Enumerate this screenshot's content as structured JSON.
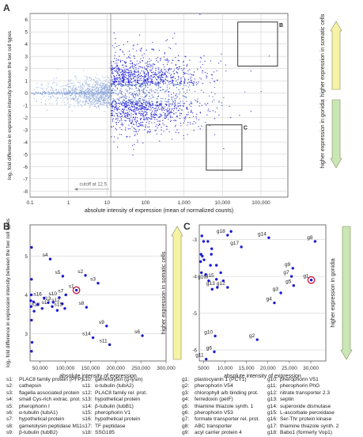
{
  "colors": {
    "point": "#1a1ad6",
    "point_light": "#8fa8d8",
    "point_mid": "#3a55c8",
    "grid": "#c9c9c9",
    "axis": "#555555",
    "highlight": "#cc1f4a",
    "arrow_yellow": "#f7f3a6",
    "arrow_green": "#c9e6b5"
  },
  "panels": {
    "a": "A",
    "b": "B",
    "c": "C"
  },
  "chart_data": [
    {
      "panel": "A",
      "type": "scatter",
      "xlabel": "absolute intensity of expression (mean of normalized counts)",
      "ylabel": "log₂ fold difference in expression intensity between the two cell types",
      "x_scale": "log",
      "xlim": [
        0.1,
        500000
      ],
      "ylim": [
        -8.5,
        6.5
      ],
      "x_ticks": [
        "0.1",
        "1",
        "10",
        "100",
        "1,000",
        "10,000",
        "100,000"
      ],
      "y_ticks": [
        "-8",
        "-7",
        "-6",
        "-5",
        "-4",
        "-3",
        "-2",
        "-1",
        "0",
        "1",
        "2",
        "3",
        "4",
        "5",
        "6"
      ],
      "annotation": "cutoff at 12.5",
      "cutoff_x": 12.5,
      "boxes": [
        {
          "label": "B",
          "x": [
            25000,
            270000
          ],
          "y": [
            2.2,
            5.8
          ]
        },
        {
          "label": "C",
          "x": [
            3800,
            32000
          ],
          "y": [
            -6.3,
            -2.6
          ]
        }
      ],
      "arrows": [
        {
          "label": "higher expression in somatic cells",
          "direction": "up"
        },
        {
          "label": "higher expression in gonidia",
          "direction": "down"
        }
      ],
      "grid": true
    },
    {
      "panel": "B",
      "type": "scatter",
      "xlabel": "absolute intensity of expression",
      "ylabel": "log₂ fold difference in expression intensity between the two cell types",
      "xlim": [
        30000,
        300000
      ],
      "ylim": [
        2.3,
        5.8
      ],
      "x_ticks": [
        "50,000",
        "100,000",
        "150,000",
        "200,000",
        "250,000",
        "300,000"
      ],
      "y_ticks": [
        "3",
        "4",
        "5"
      ],
      "arrow": "higher expression in somatic cells",
      "highlight": "s1",
      "points": [
        {
          "label": "s1",
          "x": 122000,
          "y": 4.12
        },
        {
          "label": "s2",
          "x": 140000,
          "y": 4.5
        },
        {
          "label": "s3",
          "x": 165000,
          "y": 4.3
        },
        {
          "label": "s4",
          "x": 70000,
          "y": 4.92
        },
        {
          "label": "s5",
          "x": 95000,
          "y": 4.48
        },
        {
          "label": "s6",
          "x": 253000,
          "y": 2.95
        },
        {
          "label": "s7",
          "x": 101000,
          "y": 4.0
        },
        {
          "label": "s8",
          "x": 142000,
          "y": 3.68
        },
        {
          "label": "s9",
          "x": 182000,
          "y": 3.2
        },
        {
          "label": "s10",
          "x": 88000,
          "y": 3.93
        },
        {
          "label": "s11",
          "x": 188000,
          "y": 2.72
        },
        {
          "label": "s12",
          "x": 94000,
          "y": 3.77
        },
        {
          "label": "s13",
          "x": 76000,
          "y": 3.81
        },
        {
          "label": "s14",
          "x": 155000,
          "y": 2.9
        },
        {
          "label": "s15",
          "x": 99000,
          "y": 3.65
        },
        {
          "label": "s16",
          "x": 58000,
          "y": 3.92
        },
        {
          "label": "s17",
          "x": 74000,
          "y": 3.7
        },
        {
          "label": "s18",
          "x": 54000,
          "y": 3.65
        },
        {
          "x": 33000,
          "y": 5.22
        },
        {
          "x": 33000,
          "y": 4.4
        },
        {
          "x": 32500,
          "y": 4.0
        },
        {
          "x": 31500,
          "y": 3.85
        },
        {
          "x": 32000,
          "y": 3.7
        },
        {
          "x": 38000,
          "y": 3.58
        },
        {
          "x": 37000,
          "y": 3.82
        },
        {
          "x": 45000,
          "y": 3.75
        },
        {
          "x": 33000,
          "y": 3.35
        },
        {
          "x": 34000,
          "y": 2.78
        },
        {
          "x": 33000,
          "y": 2.55
        },
        {
          "x": 84000,
          "y": 3.6
        },
        {
          "x": 66000,
          "y": 3.8
        }
      ]
    },
    {
      "panel": "C",
      "type": "scatter",
      "xlabel": "absolute intensity of expression",
      "ylabel": "",
      "xlim": [
        4000,
        33500
      ],
      "ylim": [
        -6.3,
        -2.6
      ],
      "x_ticks": [
        "5000",
        "10,000",
        "15,000",
        "20,000",
        "25,000",
        "30,000"
      ],
      "y_ticks": [
        "-6",
        "-5",
        "-4",
        "-3"
      ],
      "arrow": "higher expression in gonidia",
      "highlight": "g1",
      "points": [
        {
          "label": "g1",
          "x": 30100,
          "y": -4.1
        },
        {
          "label": "g2",
          "x": 17500,
          "y": -5.72
        },
        {
          "label": "g3",
          "x": 23000,
          "y": -4.45
        },
        {
          "label": "g4",
          "x": 21500,
          "y": -4.72
        },
        {
          "label": "g5",
          "x": 26000,
          "y": -4.25
        },
        {
          "label": "g6",
          "x": 7500,
          "y": -6.05
        },
        {
          "label": "g7",
          "x": 25500,
          "y": -4.0
        },
        {
          "label": "g8",
          "x": 31000,
          "y": -3.05
        },
        {
          "label": "g9",
          "x": 25800,
          "y": -3.78
        },
        {
          "label": "g10",
          "x": 7700,
          "y": -5.62
        },
        {
          "label": "g11",
          "x": 5600,
          "y": -6.25
        },
        {
          "label": "g12",
          "x": 10600,
          "y": -4.3
        },
        {
          "label": "g13",
          "x": 8200,
          "y": -4.3
        },
        {
          "label": "g14",
          "x": 20200,
          "y": -2.95
        },
        {
          "label": "g15",
          "x": 8000,
          "y": -4.08
        },
        {
          "label": "g16",
          "x": 6200,
          "y": -4.12
        },
        {
          "label": "g17",
          "x": 13800,
          "y": -3.2
        },
        {
          "label": "g18",
          "x": 10600,
          "y": -2.88
        },
        {
          "x": 4600,
          "y": -2.9
        },
        {
          "x": 5000,
          "y": -3.05
        },
        {
          "x": 4400,
          "y": -3.4
        },
        {
          "x": 4700,
          "y": -3.45
        },
        {
          "x": 4300,
          "y": -3.6
        },
        {
          "x": 5100,
          "y": -3.55
        },
        {
          "x": 6000,
          "y": -3.05
        },
        {
          "x": 6800,
          "y": -3.4
        },
        {
          "x": 6600,
          "y": -3.7
        },
        {
          "x": 5500,
          "y": -3.95
        },
        {
          "x": 8000,
          "y": -3.7
        },
        {
          "x": 9000,
          "y": -3.9
        },
        {
          "x": 4500,
          "y": -3.9
        },
        {
          "x": 6900,
          "y": -3.25
        },
        {
          "x": 7000,
          "y": -4.35
        },
        {
          "x": 9600,
          "y": -4.12
        },
        {
          "x": 11400,
          "y": -2.78
        }
      ]
    }
  ],
  "legend": {
    "s": [
      [
        "s1:",
        "PLAC8 family protein (PFP)"
      ],
      [
        "s2:",
        "cathepsin"
      ],
      [
        "s3:",
        "flagella associated protein"
      ],
      [
        "s4:",
        "small Cys-rich extrac. prot."
      ],
      [
        "s5:",
        "pherophorin I"
      ],
      [
        "s6:",
        "α-tubulin (tubA1)"
      ],
      [
        "s7:",
        "hypothetical protein"
      ],
      [
        "s8:",
        "gametolysin peptidase M11"
      ],
      [
        "s9:",
        "β-tubulin (tubB2)"
      ]
    ],
    "s2": [
      [
        "s10:",
        "gametolysin (g-lysin)"
      ],
      [
        "s11:",
        "α-tubulin (tubA2)"
      ],
      [
        "s12:",
        "PLAC8 family rel. prot."
      ],
      [
        "s13:",
        "hypothetical protein"
      ],
      [
        "s14:",
        "β-tubulin (tubB1)"
      ],
      [
        "s15:",
        "pherophorin V1"
      ],
      [
        "s16:",
        "hypothetical protein"
      ],
      [
        "s17:",
        "TF peptidase"
      ],
      [
        "s18:",
        "SSG185"
      ]
    ],
    "g": [
      [
        "g1:",
        "plastocyanin 1 (PCY1)"
      ],
      [
        "g2:",
        "pherophorin V54"
      ],
      [
        "g3:",
        "chlorophyll a/b binding prot."
      ],
      [
        "g4:",
        "ferredoxin (petF)"
      ],
      [
        "g5:",
        "thiamine thiazole synth. 1"
      ],
      [
        "g6:",
        "pherophorin V53"
      ],
      [
        "g7:",
        "formate transporter rel. prot."
      ],
      [
        "g8:",
        "ABC transporter"
      ],
      [
        "g9:",
        "acyl carrier protein 4"
      ]
    ],
    "g2": [
      [
        "g10:",
        "pherophorin V51"
      ],
      [
        "g11:",
        "pherophorin PhG"
      ],
      [
        "g12:",
        "nitrate transporter 2.3"
      ],
      [
        "g13:",
        "septin"
      ],
      [
        "g14:",
        "superoxide dismutase"
      ],
      [
        "g15:",
        "L-ascorbate peroxidase"
      ],
      [
        "g16:",
        "Ser-Thr protein kinase"
      ],
      [
        "g17:",
        "thiamine thiazole synth. 2"
      ],
      [
        "g18:",
        "Babo1 (formerly Vop1)"
      ]
    ]
  }
}
